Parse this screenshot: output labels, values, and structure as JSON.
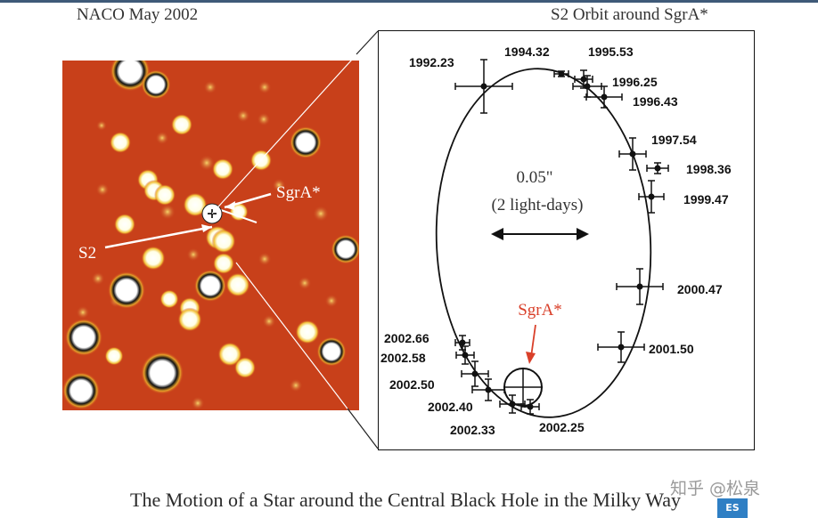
{
  "header": {
    "left_title": "NACO May 2002",
    "right_title": "S2 Orbit around SgrA*"
  },
  "image_panel": {
    "sgra_label": "SgrA*",
    "s2_label": "S2"
  },
  "orbit_panel": {
    "scale_value": "0.05\"",
    "scale_note": "(2 light-days)",
    "sgra_label": "SgrA*",
    "epochs": [
      {
        "label": "1992.23"
      },
      {
        "label": "1994.32"
      },
      {
        "label": "1995.53"
      },
      {
        "label": "1996.25"
      },
      {
        "label": "1996.43"
      },
      {
        "label": "1997.54"
      },
      {
        "label": "1998.36"
      },
      {
        "label": "1999.47"
      },
      {
        "label": "2000.47"
      },
      {
        "label": "2001.50"
      },
      {
        "label": "2002.66"
      },
      {
        "label": "2002.58"
      },
      {
        "label": "2002.50"
      },
      {
        "label": "2002.40"
      },
      {
        "label": "2002.33"
      },
      {
        "label": "2002.25"
      }
    ]
  },
  "caption": "The Motion of a Star around the Central Black Hole in the Milky Way",
  "watermark": "知乎 @松泉",
  "colors": {
    "field_background": "#c8401a",
    "sgra_label": "#d9402a",
    "ink": "#111111",
    "topbar": "#3f5a78"
  },
  "icons": {
    "eso_logo": "eso-logo",
    "crosshair": "crosshair-icon"
  }
}
